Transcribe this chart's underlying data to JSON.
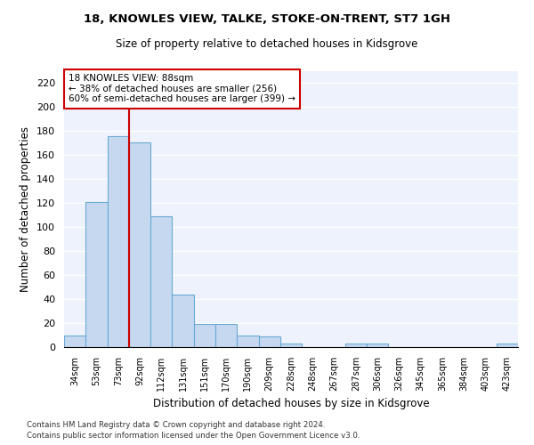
{
  "title1": "18, KNOWLES VIEW, TALKE, STOKE-ON-TRENT, ST7 1GH",
  "title2": "Size of property relative to detached houses in Kidsgrove",
  "xlabel": "Distribution of detached houses by size in Kidsgrove",
  "ylabel": "Number of detached properties",
  "categories": [
    "34sqm",
    "53sqm",
    "73sqm",
    "92sqm",
    "112sqm",
    "131sqm",
    "151sqm",
    "170sqm",
    "190sqm",
    "209sqm",
    "228sqm",
    "248sqm",
    "267sqm",
    "287sqm",
    "306sqm",
    "326sqm",
    "345sqm",
    "365sqm",
    "384sqm",
    "403sqm",
    "423sqm"
  ],
  "values": [
    10,
    121,
    176,
    171,
    109,
    44,
    19,
    19,
    10,
    9,
    3,
    0,
    0,
    3,
    3,
    0,
    0,
    0,
    0,
    0,
    3
  ],
  "bar_color": "#c5d8f0",
  "bar_edge_color": "#6aaad4",
  "vline_color": "#cc0000",
  "annotation_text": "18 KNOWLES VIEW: 88sqm\n← 38% of detached houses are smaller (256)\n60% of semi-detached houses are larger (399) →",
  "annotation_box_color": "#ffffff",
  "annotation_box_edge_color": "#cc0000",
  "ylim": [
    0,
    230
  ],
  "yticks": [
    0,
    20,
    40,
    60,
    80,
    100,
    120,
    140,
    160,
    180,
    200,
    220
  ],
  "background_color": "#eef2fc",
  "grid_color": "#ffffff",
  "footer1": "Contains HM Land Registry data © Crown copyright and database right 2024.",
  "footer2": "Contains public sector information licensed under the Open Government Licence v3.0."
}
